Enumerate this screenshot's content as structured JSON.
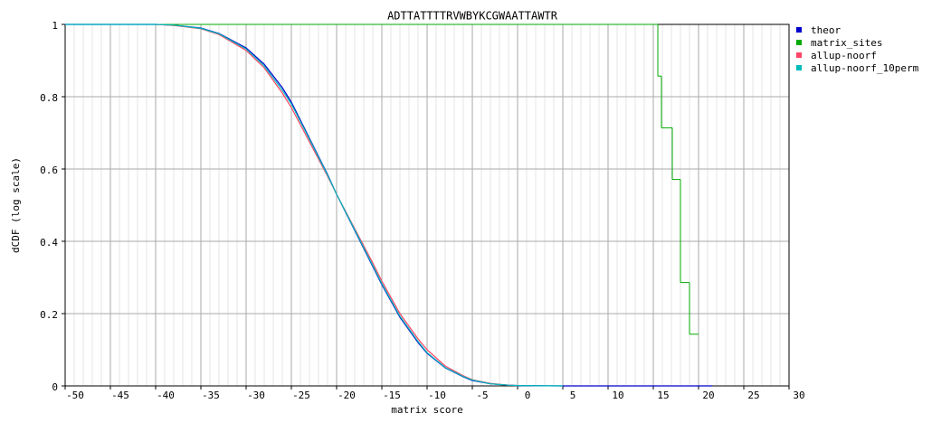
{
  "chart_data": {
    "type": "line",
    "title": "ADTTATTTTRVWBYKCGWAATTAWTR",
    "x_label": "matrix score",
    "y_label": "dCDF (log scale)",
    "xlim": [
      -50,
      30
    ],
    "ylim": [
      0,
      1
    ],
    "xticks": [
      -50,
      -45,
      -40,
      -35,
      -30,
      -25,
      -20,
      -15,
      -10,
      -5,
      0,
      5,
      10,
      15,
      20,
      25,
      30
    ],
    "yticks": [
      0,
      0.2,
      0.4,
      0.6,
      0.8,
      1
    ],
    "grid": true,
    "legend": "right",
    "x": [
      -50,
      -40,
      -38,
      -35,
      -33,
      -30,
      -28,
      -26,
      -25,
      -23,
      -21,
      -20,
      -18,
      -16,
      -15,
      -13,
      -11,
      -10,
      -8,
      -6,
      -5,
      -3,
      -1,
      0,
      5,
      10,
      15,
      20,
      21.5
    ],
    "series": [
      {
        "name": "theor",
        "color": "#0000cc",
        "values": [
          1,
          1,
          0.998,
          0.99,
          0.975,
          0.935,
          0.89,
          0.825,
          0.785,
          0.685,
          0.585,
          0.53,
          0.43,
          0.33,
          0.28,
          0.19,
          0.12,
          0.09,
          0.05,
          0.025,
          0.015,
          0.006,
          0.002,
          0.001,
          0,
          0,
          0,
          0,
          0
        ]
      },
      {
        "name": "matrix_sites",
        "color": "#00aa00",
        "step": true,
        "x": [
          -50,
          15.5,
          15.9,
          17.1,
          18.0,
          19.0,
          20.0
        ],
        "values": [
          1,
          0.857,
          0.714,
          0.571,
          0.286,
          0.143,
          0.143
        ]
      },
      {
        "name": "allup-noorf",
        "color": "#ff4466",
        "values": [
          null,
          1,
          0.997,
          0.988,
          0.972,
          0.928,
          0.88,
          0.81,
          0.77,
          0.675,
          0.58,
          0.53,
          0.435,
          0.34,
          0.29,
          0.2,
          0.13,
          0.1,
          0.055,
          0.028,
          0.017,
          0.007,
          0.002,
          0.001,
          null,
          null,
          null,
          null,
          null
        ]
      },
      {
        "name": "allup-noorf_10perm",
        "color": "#00bbbb",
        "values": [
          1,
          1,
          0.998,
          0.989,
          0.974,
          0.932,
          0.885,
          0.818,
          0.78,
          0.682,
          0.583,
          0.53,
          0.432,
          0.333,
          0.283,
          0.193,
          0.123,
          0.092,
          0.051,
          0.026,
          0.016,
          0.006,
          0.002,
          0.001,
          0,
          null,
          null,
          null,
          null
        ]
      }
    ]
  }
}
